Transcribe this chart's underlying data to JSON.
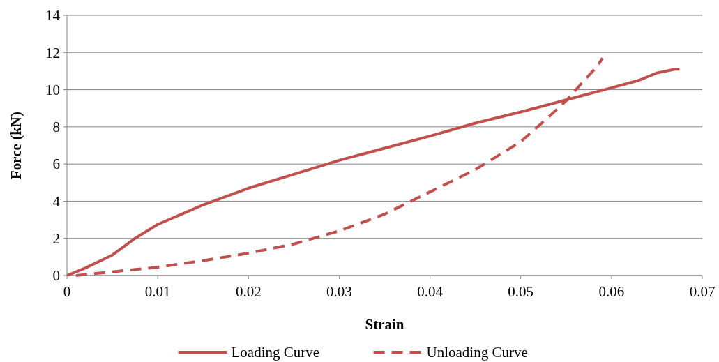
{
  "chart_data": {
    "type": "line",
    "xlabel": "Strain",
    "ylabel": "Force (kN)",
    "xlim": [
      0,
      0.07
    ],
    "xticks": [
      0,
      0.01,
      0.02,
      0.03,
      0.04,
      0.05,
      0.06,
      0.07
    ],
    "ylim": [
      0,
      14
    ],
    "yticks": [
      0,
      2,
      4,
      6,
      8,
      10,
      12,
      14
    ],
    "grid": "y",
    "legend": "bottom",
    "marker": "none",
    "series": [
      {
        "name": "Loading Curve",
        "color": "#c0504d",
        "line_style": "solid",
        "x": [
          0,
          0.002,
          0.005,
          0.0075,
          0.01,
          0.015,
          0.02,
          0.025,
          0.03,
          0.035,
          0.04,
          0.045,
          0.05,
          0.055,
          0.06,
          0.063,
          0.065,
          0.067,
          0.0675
        ],
        "values": [
          0,
          0.4,
          1.1,
          2.0,
          2.75,
          3.8,
          4.7,
          5.45,
          6.2,
          6.85,
          7.5,
          8.2,
          8.8,
          9.45,
          10.1,
          10.5,
          10.9,
          11.1,
          11.1
        ]
      },
      {
        "name": "Unloading Curve",
        "color": "#c0504d",
        "line_style": "dashed",
        "x": [
          0.001,
          0.005,
          0.01,
          0.015,
          0.02,
          0.025,
          0.03,
          0.035,
          0.04,
          0.045,
          0.05,
          0.053,
          0.055,
          0.057,
          0.0585,
          0.059
        ],
        "values": [
          0,
          0.2,
          0.45,
          0.8,
          1.2,
          1.7,
          2.4,
          3.3,
          4.5,
          5.7,
          7.2,
          8.5,
          9.4,
          10.5,
          11.3,
          11.7
        ]
      }
    ]
  }
}
